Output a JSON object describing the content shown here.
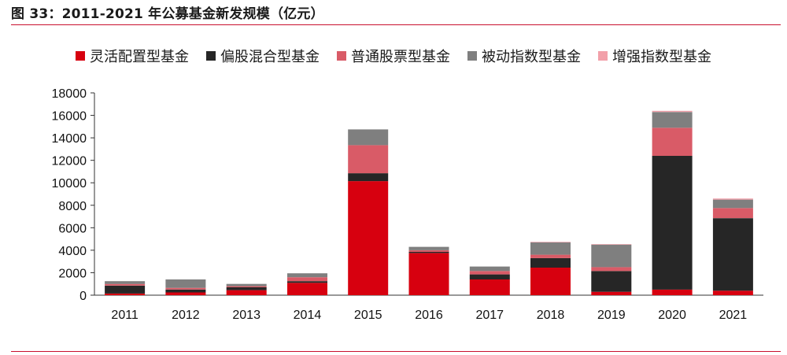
{
  "figure": {
    "title": "图 33：2011-2021 年公募基金新发规模（亿元）"
  },
  "chart_data": {
    "type": "bar",
    "stacked": true,
    "categories": [
      "2011",
      "2012",
      "2013",
      "2014",
      "2015",
      "2016",
      "2017",
      "2018",
      "2019",
      "2020",
      "2021"
    ],
    "series": [
      {
        "name": "灵活配置型基金",
        "color": "#d7000f",
        "values": [
          150,
          250,
          450,
          1100,
          10150,
          3750,
          1400,
          2450,
          300,
          500,
          400
        ]
      },
      {
        "name": "偏股混合型基金",
        "color": "#262626",
        "values": [
          700,
          250,
          250,
          150,
          700,
          100,
          450,
          850,
          1850,
          11900,
          6450
        ]
      },
      {
        "name": "普通股票型基金",
        "color": "#d95b67",
        "values": [
          150,
          150,
          100,
          350,
          2500,
          150,
          300,
          300,
          350,
          2500,
          900
        ]
      },
      {
        "name": "被动指数型基金",
        "color": "#7f7f7f",
        "values": [
          250,
          750,
          200,
          350,
          1400,
          300,
          400,
          1100,
          2000,
          1400,
          750
        ]
      },
      {
        "name": "增强指数型基金",
        "color": "#f2a0a9",
        "values": [
          0,
          0,
          0,
          0,
          0,
          0,
          0,
          50,
          50,
          100,
          100
        ]
      }
    ],
    "ylim": [
      0,
      18000
    ],
    "yticks": [
      0,
      2000,
      4000,
      6000,
      8000,
      10000,
      12000,
      14000,
      16000,
      18000
    ],
    "legend_position": "top",
    "grid": false
  }
}
